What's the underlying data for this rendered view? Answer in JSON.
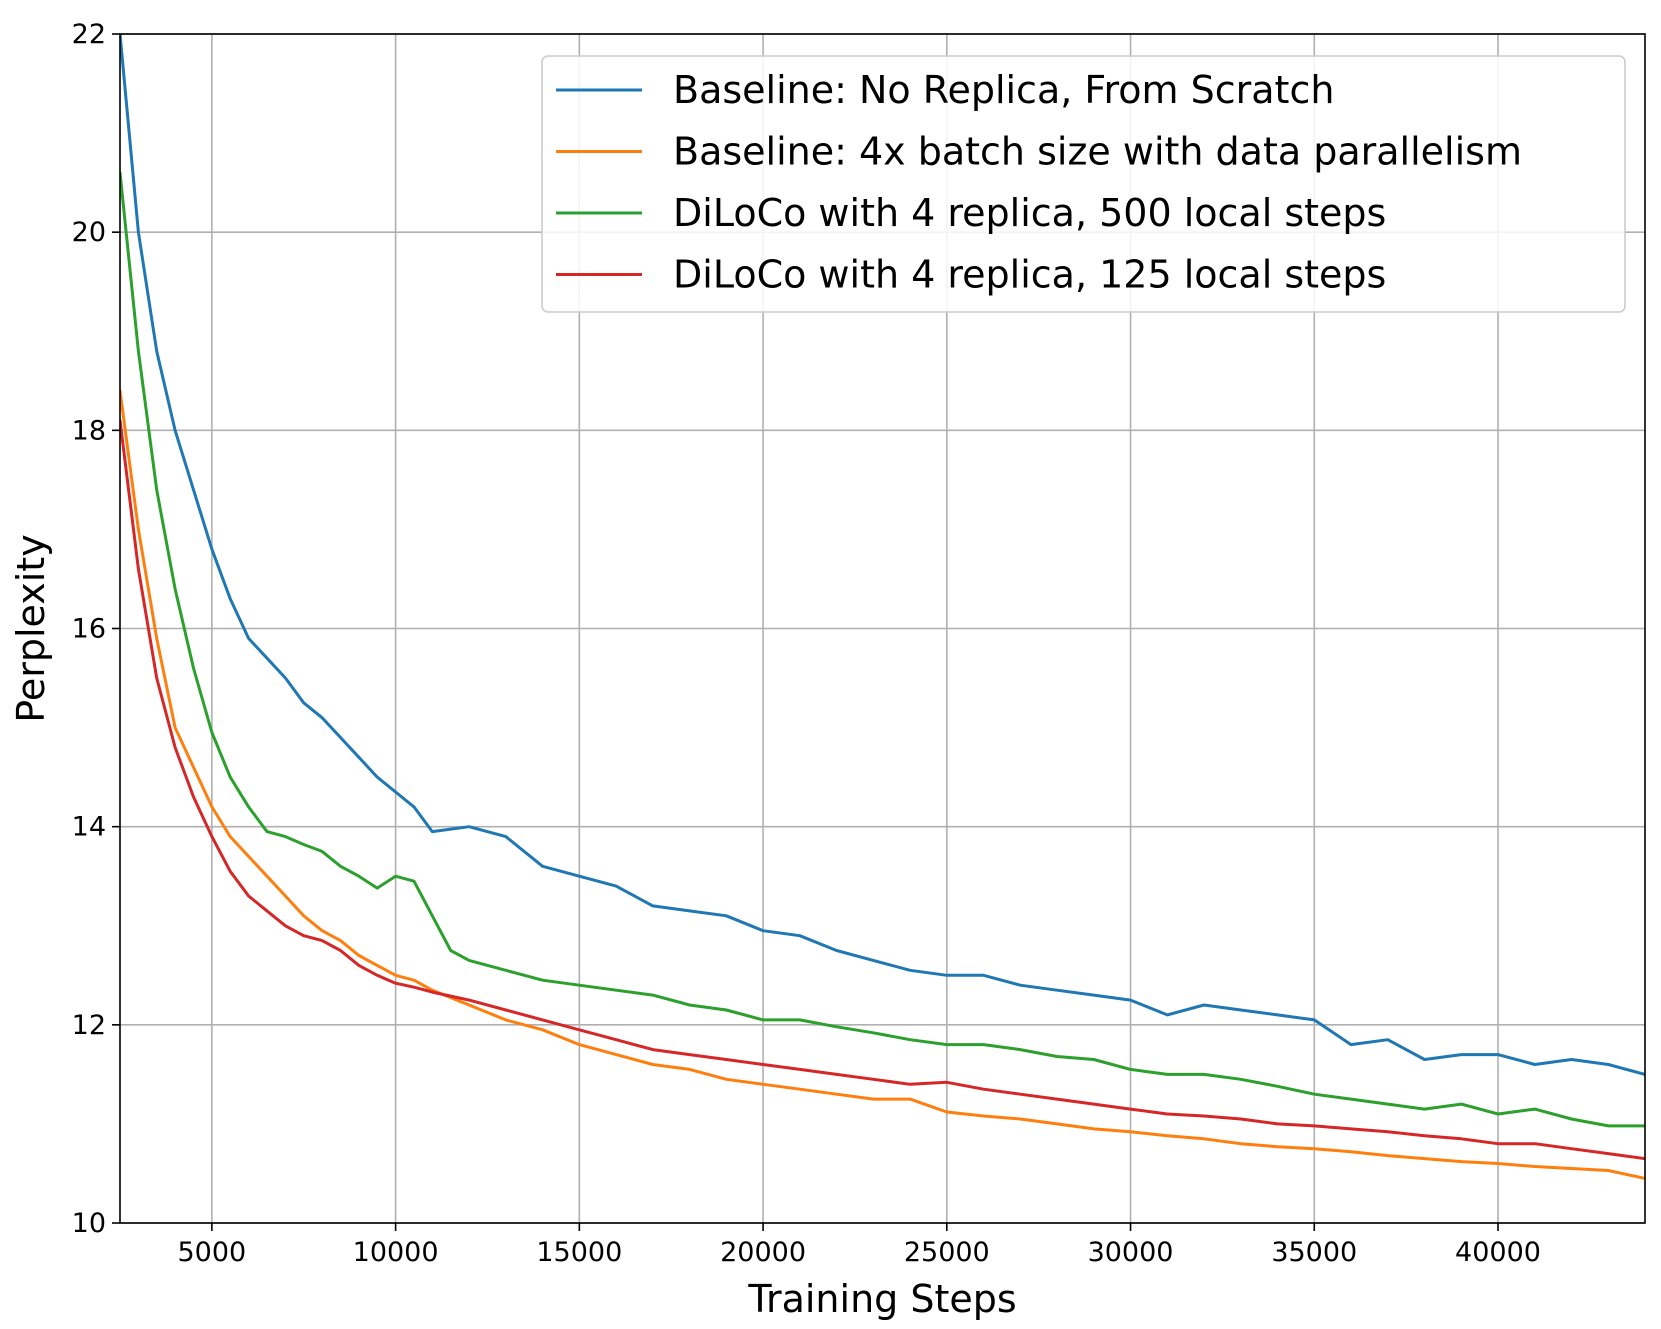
{
  "chart_data": {
    "type": "line",
    "xlabel": "Training Steps",
    "ylabel": "Perplexity",
    "xlim": [
      2500,
      44000
    ],
    "ylim": [
      10,
      22
    ],
    "xticks": [
      5000,
      10000,
      15000,
      20000,
      25000,
      30000,
      35000,
      40000
    ],
    "yticks": [
      10,
      12,
      14,
      16,
      18,
      20,
      22
    ],
    "grid": true,
    "legend_position": "top-right",
    "series": [
      {
        "name": "Baseline: No Replica, From Scratch",
        "color": "#1f77b4",
        "x": [
          2500,
          3000,
          3500,
          4000,
          4500,
          5000,
          5500,
          6000,
          6500,
          7000,
          7500,
          8000,
          8500,
          9000,
          9500,
          10000,
          10500,
          11000,
          12000,
          13000,
          14000,
          15000,
          16000,
          17000,
          18000,
          19000,
          20000,
          21000,
          22000,
          23000,
          24000,
          25000,
          26000,
          27000,
          28000,
          29000,
          30000,
          31000,
          32000,
          33000,
          34000,
          35000,
          36000,
          37000,
          38000,
          39000,
          40000,
          41000,
          42000,
          43000,
          44000
        ],
        "values": [
          22.0,
          20.0,
          18.8,
          18.0,
          17.4,
          16.8,
          16.3,
          15.9,
          15.7,
          15.5,
          15.25,
          15.1,
          14.9,
          14.7,
          14.5,
          14.35,
          14.2,
          13.95,
          14.0,
          13.9,
          13.6,
          13.5,
          13.4,
          13.2,
          13.15,
          13.1,
          12.95,
          12.9,
          12.75,
          12.65,
          12.55,
          12.5,
          12.5,
          12.4,
          12.35,
          12.3,
          12.25,
          12.1,
          12.2,
          12.15,
          12.1,
          12.05,
          11.8,
          11.85,
          11.65,
          11.7,
          11.7,
          11.6,
          11.65,
          11.6,
          11.5
        ]
      },
      {
        "name": "Baseline: 4x batch size with data parallelism",
        "color": "#ff7f0e",
        "x": [
          2500,
          3000,
          3500,
          4000,
          4500,
          5000,
          5500,
          6000,
          6500,
          7000,
          7500,
          8000,
          8500,
          9000,
          9500,
          10000,
          10500,
          11000,
          12000,
          13000,
          14000,
          15000,
          16000,
          17000,
          18000,
          19000,
          20000,
          21000,
          22000,
          23000,
          24000,
          25000,
          26000,
          27000,
          28000,
          29000,
          30000,
          31000,
          32000,
          33000,
          34000,
          35000,
          36000,
          37000,
          38000,
          39000,
          40000,
          41000,
          42000,
          43000,
          44000
        ],
        "values": [
          18.4,
          17.0,
          15.9,
          15.0,
          14.6,
          14.2,
          13.9,
          13.7,
          13.5,
          13.3,
          13.1,
          12.95,
          12.85,
          12.7,
          12.6,
          12.5,
          12.45,
          12.35,
          12.2,
          12.05,
          11.95,
          11.8,
          11.7,
          11.6,
          11.55,
          11.45,
          11.4,
          11.35,
          11.3,
          11.25,
          11.25,
          11.12,
          11.08,
          11.05,
          11.0,
          10.95,
          10.92,
          10.88,
          10.85,
          10.8,
          10.77,
          10.75,
          10.72,
          10.68,
          10.65,
          10.62,
          10.6,
          10.57,
          10.55,
          10.53,
          10.45
        ]
      },
      {
        "name": "DiLoCo with 4 replica, 500 local steps",
        "color": "#2ca02c",
        "x": [
          2500,
          3000,
          3500,
          4000,
          4500,
          5000,
          5500,
          6000,
          6500,
          7000,
          7500,
          8000,
          8500,
          9000,
          9500,
          10000,
          10500,
          11000,
          11500,
          12000,
          13000,
          14000,
          15000,
          16000,
          17000,
          18000,
          19000,
          20000,
          21000,
          22000,
          23000,
          24000,
          25000,
          26000,
          27000,
          28000,
          29000,
          30000,
          31000,
          32000,
          33000,
          34000,
          35000,
          36000,
          37000,
          38000,
          39000,
          40000,
          41000,
          42000,
          43000,
          44000
        ],
        "values": [
          20.6,
          18.8,
          17.4,
          16.4,
          15.6,
          14.95,
          14.5,
          14.2,
          13.95,
          13.9,
          13.82,
          13.75,
          13.6,
          13.5,
          13.38,
          13.5,
          13.45,
          13.1,
          12.75,
          12.65,
          12.55,
          12.45,
          12.4,
          12.35,
          12.3,
          12.2,
          12.15,
          12.05,
          12.05,
          11.98,
          11.92,
          11.85,
          11.8,
          11.8,
          11.75,
          11.68,
          11.65,
          11.55,
          11.5,
          11.5,
          11.45,
          11.38,
          11.3,
          11.25,
          11.2,
          11.15,
          11.2,
          11.1,
          11.15,
          11.05,
          10.98,
          10.98
        ]
      },
      {
        "name": "DiLoCo with 4 replica, 125 local steps",
        "color": "#d62728",
        "x": [
          2500,
          3000,
          3500,
          4000,
          4500,
          5000,
          5500,
          6000,
          6500,
          7000,
          7500,
          8000,
          8500,
          9000,
          9500,
          10000,
          10500,
          11000,
          12000,
          13000,
          14000,
          15000,
          16000,
          17000,
          18000,
          19000,
          20000,
          21000,
          22000,
          23000,
          24000,
          25000,
          26000,
          27000,
          28000,
          29000,
          30000,
          31000,
          32000,
          33000,
          34000,
          35000,
          36000,
          37000,
          38000,
          39000,
          40000,
          41000,
          42000,
          43000,
          44000
        ],
        "values": [
          18.1,
          16.6,
          15.5,
          14.8,
          14.3,
          13.9,
          13.55,
          13.3,
          13.15,
          13.0,
          12.9,
          12.85,
          12.75,
          12.6,
          12.5,
          12.42,
          12.38,
          12.33,
          12.25,
          12.15,
          12.05,
          11.95,
          11.85,
          11.75,
          11.7,
          11.65,
          11.6,
          11.55,
          11.5,
          11.45,
          11.4,
          11.42,
          11.35,
          11.3,
          11.25,
          11.2,
          11.15,
          11.1,
          11.08,
          11.05,
          11.0,
          10.98,
          10.95,
          10.92,
          10.88,
          10.85,
          10.8,
          10.8,
          10.75,
          10.7,
          10.65
        ]
      }
    ]
  }
}
